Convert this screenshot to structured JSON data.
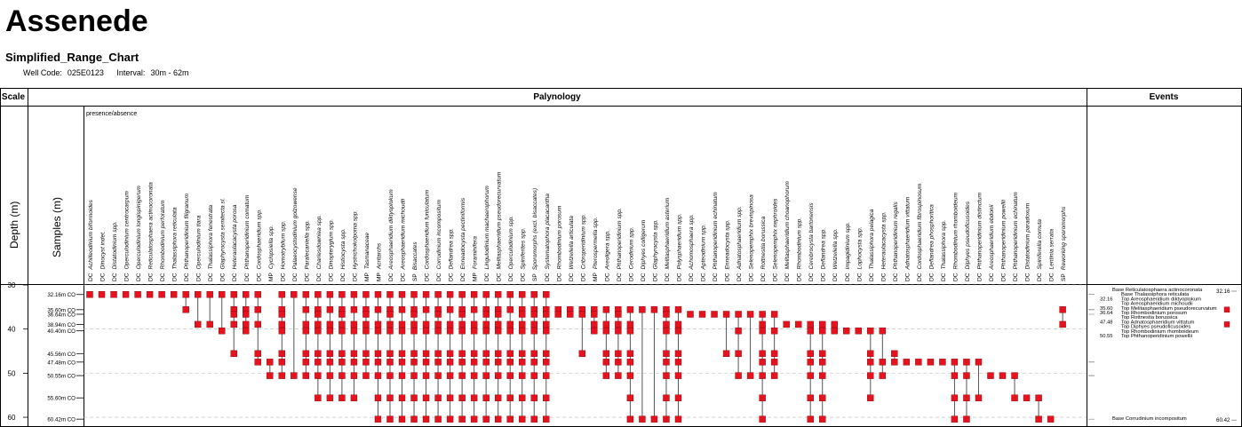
{
  "header": {
    "title": "Assenede",
    "subtitle": "Simplified_Range_Chart",
    "well_code_label": "Well Code:",
    "well_code": "025E0123",
    "interval_label": "Interval:",
    "interval": "30m - 62m"
  },
  "columns": {
    "scale": "Scale",
    "palynology": "Palynology",
    "events": "Events",
    "depth_label": "Depth (m)",
    "samples_label": "Samples (m)",
    "presence_note": "presence/absence"
  },
  "colors": {
    "marker": "#e8121f",
    "marker_stroke": "#7a0000",
    "range_line": "#555555",
    "grid": "#bbbbbb"
  },
  "chart_data": {
    "type": "range_chart",
    "depth_range": [
      30,
      62
    ],
    "depth_ticks": [
      "30",
      "40",
      "50",
      "60"
    ],
    "depth_tick_values": [
      30,
      40,
      50,
      60
    ],
    "samples": [
      {
        "depth": 32.16,
        "label": "32.16m CO"
      },
      {
        "depth": 35.6,
        "label": "35.60m CO"
      },
      {
        "depth": 36.64,
        "label": "36.64m CO"
      },
      {
        "depth": 38.94,
        "label": "38.94m CO"
      },
      {
        "depth": 40.4,
        "label": "40.40m CO"
      },
      {
        "depth": 45.56,
        "label": "45.56m CO"
      },
      {
        "depth": 47.48,
        "label": "47.48m CO"
      },
      {
        "depth": 50.55,
        "label": "50.55m CO"
      },
      {
        "depth": 55.6,
        "label": "55.60m CO"
      },
      {
        "depth": 60.42,
        "label": "60.42m CO"
      }
    ],
    "taxa": [
      {
        "group": "DC",
        "name": "Achilleodinium biformoides",
        "occ": [
          32.16
        ]
      },
      {
        "group": "DC",
        "name": "Dinocyst indet.",
        "occ": [
          32.16
        ]
      },
      {
        "group": "DC",
        "name": "Distatodinium spp.",
        "occ": [
          32.16
        ]
      },
      {
        "group": "DC",
        "name": "Operculodinium centrocarpum",
        "occ": [
          32.16
        ]
      },
      {
        "group": "DC",
        "name": "Operculodinium longispinigerum",
        "occ": [
          32.16
        ]
      },
      {
        "group": "DC",
        "name": "Reticulatosphaera actinocoronata",
        "occ": [
          32.16
        ]
      },
      {
        "group": "DC",
        "name": "Rhombodinium perforatum",
        "occ": [
          32.16
        ]
      },
      {
        "group": "DC",
        "name": "Thalassiphora reticulata",
        "occ": [
          32.16
        ]
      },
      {
        "group": "DC",
        "name": "Phthanoperidinium filigranum",
        "occ": [
          32.16,
          35.6
        ]
      },
      {
        "group": "DC",
        "name": "Operculodinium tiara",
        "occ": [
          32.16,
          38.94
        ]
      },
      {
        "group": "DC",
        "name": "Thalassiphora fenestrata",
        "occ": [
          32.16,
          38.94
        ]
      },
      {
        "group": "DC",
        "name": "Glaphyrocysta semitecta sl.",
        "occ": [
          32.16,
          40.4
        ]
      },
      {
        "group": "DC",
        "name": "Heteraulacacysta porosa",
        "occ": [
          32.16,
          35.6,
          36.64,
          38.94,
          45.56
        ]
      },
      {
        "group": "DC",
        "name": "Phthanoperidinium comatum",
        "occ": [
          32.16,
          35.6,
          36.64,
          38.94,
          40.4
        ]
      },
      {
        "group": "DC",
        "name": "Cordosphaeridium spp.",
        "occ": [
          32.16,
          35.6,
          38.94,
          45.56,
          47.48
        ]
      },
      {
        "group": "MP",
        "name": "Cyclopsiella spp.",
        "occ": [
          47.48,
          50.55
        ]
      },
      {
        "group": "DC",
        "name": "Homotryblium spp.",
        "occ": [
          32.16,
          35.6,
          36.64,
          38.94,
          40.4,
          45.56,
          47.48,
          50.55
        ]
      },
      {
        "group": "DC",
        "name": "Palaeocystodinium golzowense",
        "occ": [
          32.16,
          50.55
        ]
      },
      {
        "group": "DC",
        "name": "Paralecaniella spp.",
        "occ": [
          32.16,
          35.6,
          38.94,
          40.4,
          45.56,
          47.48,
          50.55
        ]
      },
      {
        "group": "DC",
        "name": "Charlesdowniea spp.",
        "occ": [
          32.16,
          35.6,
          36.64,
          38.94,
          40.4,
          45.56,
          47.48,
          50.55,
          55.6
        ]
      },
      {
        "group": "DC",
        "name": "Dinopterygium spp.",
        "occ": [
          32.16,
          35.6,
          38.94,
          40.4,
          45.56,
          47.48,
          50.55,
          55.6
        ]
      },
      {
        "group": "DC",
        "name": "Histiocysta spp.",
        "occ": [
          32.16,
          35.6,
          36.64,
          38.94,
          40.4,
          45.56,
          47.48,
          50.55,
          55.6
        ]
      },
      {
        "group": "DC",
        "name": "Hystrichokolpoma spp.",
        "occ": [
          32.16,
          35.6,
          38.94,
          40.4,
          45.56,
          47.48,
          50.55,
          55.6
        ]
      },
      {
        "group": "MP",
        "name": "Tasmanaceae",
        "occ": [
          32.16,
          35.6,
          36.64,
          38.94,
          40.4,
          45.56,
          47.48,
          50.55
        ]
      },
      {
        "group": "MP",
        "name": "Acritarchs",
        "occ": [
          32.16,
          35.6,
          38.94,
          40.4,
          45.56,
          47.48,
          50.55,
          55.6,
          60.42
        ]
      },
      {
        "group": "DC",
        "name": "Areosphaeridium diktyoplokum",
        "occ": [
          32.16,
          35.6,
          36.64,
          38.94,
          40.4,
          45.56,
          47.48,
          50.55,
          55.6,
          60.42
        ]
      },
      {
        "group": "DC",
        "name": "Areosphaeridium michoudii",
        "occ": [
          32.16,
          35.6,
          38.94,
          40.4,
          45.56,
          47.48,
          50.55,
          55.6,
          60.42
        ]
      },
      {
        "group": "SP",
        "name": "Bisaccates",
        "occ": [
          32.16,
          35.6,
          36.64,
          38.94,
          40.4,
          45.56,
          47.48,
          50.55,
          55.6,
          60.42
        ]
      },
      {
        "group": "DC",
        "name": "Cordosphaeridium funiculatum",
        "occ": [
          32.16,
          35.6,
          38.94,
          40.4,
          45.56,
          47.48,
          50.55,
          55.6,
          60.42
        ]
      },
      {
        "group": "DC",
        "name": "Corrudinium incompositum",
        "occ": [
          32.16,
          35.6,
          36.64,
          38.94,
          40.4,
          45.56,
          47.48,
          50.55,
          55.6,
          60.42
        ]
      },
      {
        "group": "DC",
        "name": "Deflandrea spp.",
        "occ": [
          32.16,
          35.6,
          38.94,
          40.4,
          45.56,
          47.48,
          50.55,
          55.6,
          60.42
        ]
      },
      {
        "group": "DC",
        "name": "Enneadocysta pectiniformis",
        "occ": [
          32.16,
          35.6,
          36.64,
          38.94,
          40.4,
          45.56,
          47.48,
          50.55,
          55.6,
          60.42
        ]
      },
      {
        "group": "MP",
        "name": "Foraminifera",
        "occ": [
          32.16,
          35.6,
          38.94,
          40.4,
          45.56,
          47.48,
          50.55,
          55.6,
          60.42
        ]
      },
      {
        "group": "DC",
        "name": "Lingulodinium machaerophorum",
        "occ": [
          32.16,
          35.6,
          36.64,
          38.94,
          40.4,
          45.56,
          47.48,
          50.55,
          55.6,
          60.42
        ]
      },
      {
        "group": "DC",
        "name": "Melitasphaeridium pseudorecurvatum",
        "occ": [
          32.16,
          35.6,
          36.64,
          38.94,
          40.4,
          45.56,
          47.48,
          50.55,
          55.6,
          60.42
        ]
      },
      {
        "group": "DC",
        "name": "Operculodinium spp.",
        "occ": [
          32.16,
          35.6,
          38.94,
          40.4,
          45.56,
          47.48,
          50.55,
          55.6,
          60.42
        ]
      },
      {
        "group": "DC",
        "name": "Spiniferites spp.",
        "occ": [
          32.16,
          35.6,
          36.64,
          38.94,
          40.4,
          45.56,
          47.48,
          50.55,
          55.6,
          60.42
        ]
      },
      {
        "group": "SP",
        "name": "Sporomorphs (excl. bisaccates)",
        "occ": [
          32.16,
          35.6,
          36.64,
          38.94,
          40.4,
          45.56,
          47.48,
          50.55,
          55.6,
          60.42
        ]
      },
      {
        "group": "DC",
        "name": "Systematophora placacantha",
        "occ": [
          32.16,
          35.6,
          36.64,
          38.94,
          40.4,
          45.56,
          47.48,
          50.55,
          55.6,
          60.42
        ]
      },
      {
        "group": "DC",
        "name": "Rhombodinium porosum",
        "occ": [
          35.6,
          36.64
        ]
      },
      {
        "group": "DC",
        "name": "Wetzeliella articulata",
        "occ": [
          35.6,
          36.64
        ]
      },
      {
        "group": "DC",
        "name": "Cribroperidinium spp.",
        "occ": [
          35.6,
          36.64,
          45.56
        ]
      },
      {
        "group": "MP",
        "name": "Pterospermella spp.",
        "occ": [
          35.6,
          36.64,
          38.94,
          40.4
        ]
      },
      {
        "group": "DC",
        "name": "Areoligera spp.",
        "occ": [
          35.6,
          38.94,
          40.4,
          45.56,
          47.48,
          50.55
        ]
      },
      {
        "group": "DC",
        "name": "Phthanoperidinium spp.",
        "occ": [
          35.6,
          36.64,
          38.94,
          40.4,
          45.56,
          47.48,
          50.55
        ]
      },
      {
        "group": "DC",
        "name": "Cerodinium spp.",
        "occ": [
          35.6,
          38.94,
          40.4,
          45.56,
          47.48,
          50.55,
          55.6,
          60.42
        ]
      },
      {
        "group": "DC",
        "name": "Diphyes colligerum",
        "occ": [
          35.6,
          60.42
        ]
      },
      {
        "group": "DC",
        "name": "Glaphyrocysta spp.",
        "occ": [
          35.6,
          60.42
        ]
      },
      {
        "group": "DC",
        "name": "Melitasphaeridium asterium",
        "occ": [
          35.6,
          36.64,
          38.94,
          40.4,
          45.56,
          47.48,
          50.55,
          55.6,
          60.42
        ]
      },
      {
        "group": "DC",
        "name": "Polysphaeridium spp.",
        "occ": [
          35.6,
          38.94,
          40.4,
          45.56,
          47.48,
          50.55,
          55.6,
          60.42
        ]
      },
      {
        "group": "DC",
        "name": "Achomosphaera spp.",
        "occ": [
          36.64
        ]
      },
      {
        "group": "DC",
        "name": "Apteodinium spp.",
        "occ": [
          36.64
        ]
      },
      {
        "group": "DC",
        "name": "Phthanoperidinium echinatum",
        "occ": [
          36.64
        ]
      },
      {
        "group": "DC",
        "name": "Enneadocysta spp.",
        "occ": [
          36.64,
          45.56
        ]
      },
      {
        "group": "DC",
        "name": "Adnatosphaeridium spp.",
        "occ": [
          36.64,
          40.4,
          45.56,
          50.55
        ]
      },
      {
        "group": "DC",
        "name": "Selenopemphix brevispinosa",
        "occ": [
          36.64,
          50.55
        ]
      },
      {
        "group": "DC",
        "name": "Rottnestia borussica",
        "occ": [
          36.64,
          38.94,
          40.4,
          45.56,
          47.48,
          50.55,
          55.6,
          60.42
        ]
      },
      {
        "group": "DC",
        "name": "Selenopemphix nephroides",
        "occ": [
          36.64,
          40.4,
          45.56,
          47.48,
          50.55
        ]
      },
      {
        "group": "DC",
        "name": "Melitasphaeridium choanophorum",
        "occ": [
          38.94
        ]
      },
      {
        "group": "DC",
        "name": "Rhombodinium spp.",
        "occ": [
          38.94
        ]
      },
      {
        "group": "DC",
        "name": "Cerebrocysta bartonensis",
        "occ": [
          38.94,
          40.4,
          45.56,
          47.48,
          50.55,
          55.6,
          60.42
        ]
      },
      {
        "group": "DC",
        "name": "Deflandrea spp.",
        "occ": [
          38.94,
          40.4,
          45.56,
          47.48,
          50.55,
          55.6,
          60.42
        ]
      },
      {
        "group": "DC",
        "name": "Wetzeliella spp.",
        "occ": [
          38.94,
          40.4
        ]
      },
      {
        "group": "DC",
        "name": "Impagidinium spp.",
        "occ": [
          40.4
        ]
      },
      {
        "group": "DC",
        "name": "Lophocysta spp.",
        "occ": [
          40.4
        ]
      },
      {
        "group": "DC",
        "name": "Thalassiphora pelagica",
        "occ": [
          40.4,
          45.56,
          47.48,
          50.55,
          55.6
        ]
      },
      {
        "group": "DC",
        "name": "Heteraulacacysta spp.",
        "occ": [
          40.4,
          47.48,
          50.55
        ]
      },
      {
        "group": "DC",
        "name": "Phthanoperidinium regalis",
        "occ": [
          45.56,
          47.48
        ]
      },
      {
        "group": "DC",
        "name": "Adnatosphaeridium vittatum",
        "occ": [
          47.48
        ]
      },
      {
        "group": "DC",
        "name": "Cordosphaeridium fibrospinosum",
        "occ": [
          47.48
        ]
      },
      {
        "group": "DC",
        "name": "Deflandrea phosphoritica",
        "occ": [
          47.48
        ]
      },
      {
        "group": "DC",
        "name": "Thalassiphora spp.",
        "occ": [
          47.48
        ]
      },
      {
        "group": "DC",
        "name": "Rhombodinium rhomboideum",
        "occ": [
          47.48,
          50.55,
          55.6,
          60.42
        ]
      },
      {
        "group": "DC",
        "name": "Diphyes pseudoficusoides",
        "occ": [
          47.48,
          50.55,
          55.6,
          60.42
        ]
      },
      {
        "group": "DC",
        "name": "Phthanoperidinium distinctum",
        "occ": [
          47.48,
          55.6
        ]
      },
      {
        "group": "DC",
        "name": "Areosphaeridium ebdonii",
        "occ": [
          50.55
        ]
      },
      {
        "group": "DC",
        "name": "Phthanoperidinium powellii",
        "occ": [
          50.55
        ]
      },
      {
        "group": "DC",
        "name": "Phthanoperidinium echinatum",
        "occ": [
          50.55,
          55.6
        ]
      },
      {
        "group": "DC",
        "name": "Distatodinium paradoxum",
        "occ": [
          55.6
        ]
      },
      {
        "group": "DC",
        "name": "Spiniferella cornuta",
        "occ": [
          55.6,
          60.42
        ]
      },
      {
        "group": "DC",
        "name": "Lentinia serrata",
        "occ": [
          60.42
        ]
      },
      {
        "group": "SP",
        "name": "Reworking sporomorphs",
        "occ": [
          35.6,
          38.94
        ]
      }
    ],
    "events": [
      {
        "depth": 32.16,
        "label": "Base Reticulatosphaera actinocoronata",
        "row": 0,
        "marker": true
      },
      {
        "depth": 32.16,
        "label": "Base Thalassiphora reticulata",
        "row": 1
      },
      {
        "depth": 32.16,
        "label": "Top Areosphaeridium diktyoplokum",
        "row": 2
      },
      {
        "depth": 35.6,
        "label": "Top Areosphaeridium michoudii",
        "row": 3
      },
      {
        "depth": 35.6,
        "label": "Top Melitasphaeridium pseudorecurvatum",
        "row": 4
      },
      {
        "depth": 35.6,
        "label": "Top Rhombodinium porosum",
        "row": 5
      },
      {
        "depth": 36.64,
        "label": "Top Rottnestia borussica",
        "row": 6
      },
      {
        "depth": 47.48,
        "label": "Top Adnatosphaeridium vittatum",
        "row": 7
      },
      {
        "depth": 47.48,
        "label": "Top Diphyes pseudoficusoides",
        "row": 8
      },
      {
        "depth": 50.55,
        "label": "Top Rhombodinium rhomboideum",
        "row": 9
      },
      {
        "depth": 50.55,
        "label": "Top Phthanoperidinium powellii",
        "row": 10
      },
      {
        "depth": 60.42,
        "label": "Base Corrudinium incompositum",
        "row": 11,
        "marker": true
      }
    ],
    "event_depth_labels": [
      {
        "row": 2,
        "text": "32.16"
      },
      {
        "row": 4,
        "text": "35.60"
      },
      {
        "row": 5,
        "text": "36.64"
      },
      {
        "row": 7,
        "text": "47.48"
      },
      {
        "row": 10,
        "text": "50.55"
      }
    ],
    "event_marker_labels": [
      {
        "row": 0,
        "text": "32.16"
      },
      {
        "row": 11,
        "text": "60.42"
      }
    ]
  }
}
